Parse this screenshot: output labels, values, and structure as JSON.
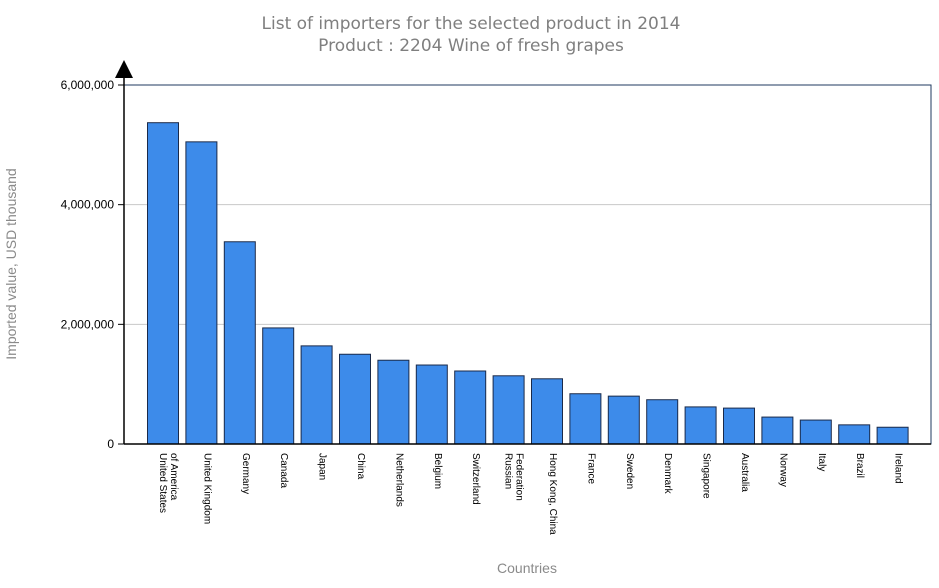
{
  "chart_data": {
    "type": "bar",
    "title": "List of importers for the selected product in 2014",
    "subtitle": "Product : 2204 Wine of fresh grapes",
    "xlabel": "Countries",
    "ylabel": "Imported value, USD thousand",
    "ylim": [
      0,
      6000000
    ],
    "yticks": [
      "0",
      "2,000,000",
      "4,000,000",
      "6,000,000"
    ],
    "grid": true,
    "bar_color": "#3d8bea",
    "categories": [
      [
        "United States",
        "of America"
      ],
      [
        "United Kingdom"
      ],
      [
        "Germany"
      ],
      [
        "Canada"
      ],
      [
        "Japan"
      ],
      [
        "China"
      ],
      [
        "Netherlands"
      ],
      [
        "Belgium"
      ],
      [
        "Switzerland"
      ],
      [
        "Russian",
        "Federation"
      ],
      [
        "Hong Kong, China"
      ],
      [
        "France"
      ],
      [
        "Sweden"
      ],
      [
        "Denmark"
      ],
      [
        "Singapore"
      ],
      [
        "Australia"
      ],
      [
        "Norway"
      ],
      [
        "Italy"
      ],
      [
        "Brazil"
      ],
      [
        "Ireland"
      ]
    ],
    "values": [
      5370000,
      5050000,
      3380000,
      1940000,
      1640000,
      1500000,
      1400000,
      1320000,
      1220000,
      1140000,
      1090000,
      840000,
      800000,
      740000,
      620000,
      600000,
      450000,
      400000,
      320000,
      280000
    ]
  }
}
